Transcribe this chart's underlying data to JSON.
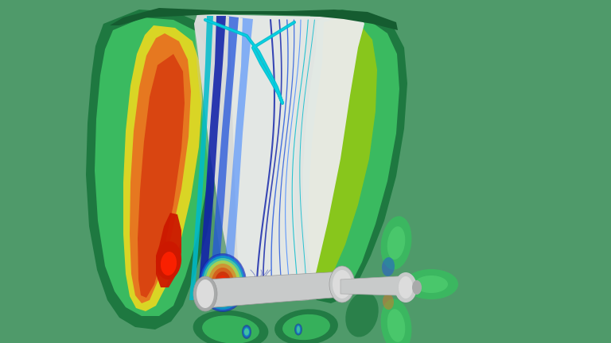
{
  "bg_color": "#4f9a6a",
  "fig_width": 7.68,
  "fig_height": 4.32,
  "dpi": 100,
  "green_outer": "#3aba60",
  "green_mid": "#4dcc6e",
  "green_light": "#6ee888",
  "green_dark": "#1e7840",
  "green_very_dark": "#155c30",
  "yellow": "#e8d820",
  "yellow_green": "#aacc00",
  "orange": "#e87020",
  "orange_red": "#d84010",
  "red": "#cc1800",
  "red_bright": "#ff2200",
  "blue_dark": "#1122aa",
  "blue_mid": "#2255dd",
  "blue_light": "#4488ff",
  "cyan": "#00bbcc",
  "cyan_light": "#00ddee",
  "gray_nacelle": "#c8caca",
  "gray_light": "#dcdcdc",
  "gray_dark": "#a8aaaa",
  "white_ish": "#ececec"
}
